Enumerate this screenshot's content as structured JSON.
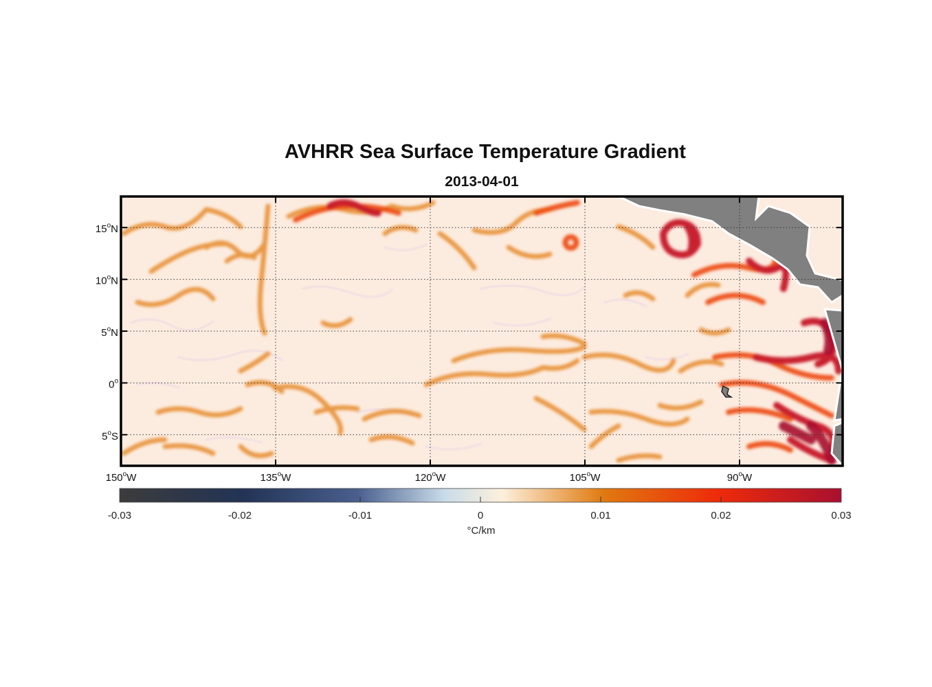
{
  "title": "AVHRR Sea Surface Temperature Gradient",
  "subtitle": "2013-04-01",
  "map": {
    "projection": "equirectangular",
    "lon_range": [
      -150,
      -80
    ],
    "lat_range": [
      -8,
      18
    ],
    "land_color": "#808080",
    "grid": "dotted",
    "lon_ticks": [
      {
        "value": -150,
        "deg": "150",
        "hem": "W"
      },
      {
        "value": -135,
        "deg": "135",
        "hem": "W"
      },
      {
        "value": -120,
        "deg": "120",
        "hem": "W"
      },
      {
        "value": -105,
        "deg": "105",
        "hem": "W"
      },
      {
        "value": -90,
        "deg": "90",
        "hem": "W"
      }
    ],
    "lat_ticks": [
      {
        "value": 15,
        "deg": "15",
        "hem": "N"
      },
      {
        "value": 10,
        "deg": "10",
        "hem": "N"
      },
      {
        "value": 5,
        "deg": "5",
        "hem": "N"
      },
      {
        "value": 0,
        "deg": "0",
        "hem": ""
      },
      {
        "value": -5,
        "deg": "5",
        "hem": "S"
      }
    ]
  },
  "colorbar": {
    "min": -0.03,
    "max": 0.03,
    "tick_values": [
      -0.03,
      -0.02,
      -0.01,
      0,
      0.01,
      0.02,
      0.03
    ],
    "tick_labels": [
      "-0.03",
      "-0.02",
      "-0.01",
      "0",
      "0.01",
      "0.02",
      "0.03"
    ],
    "unit": "°C/km",
    "colors": [
      "#3c3c3c",
      "#223355",
      "#4a5f8e",
      "#c9dcea",
      "#fdf0dc",
      "#e07a10",
      "#ee2a0a",
      "#a8102f"
    ]
  }
}
